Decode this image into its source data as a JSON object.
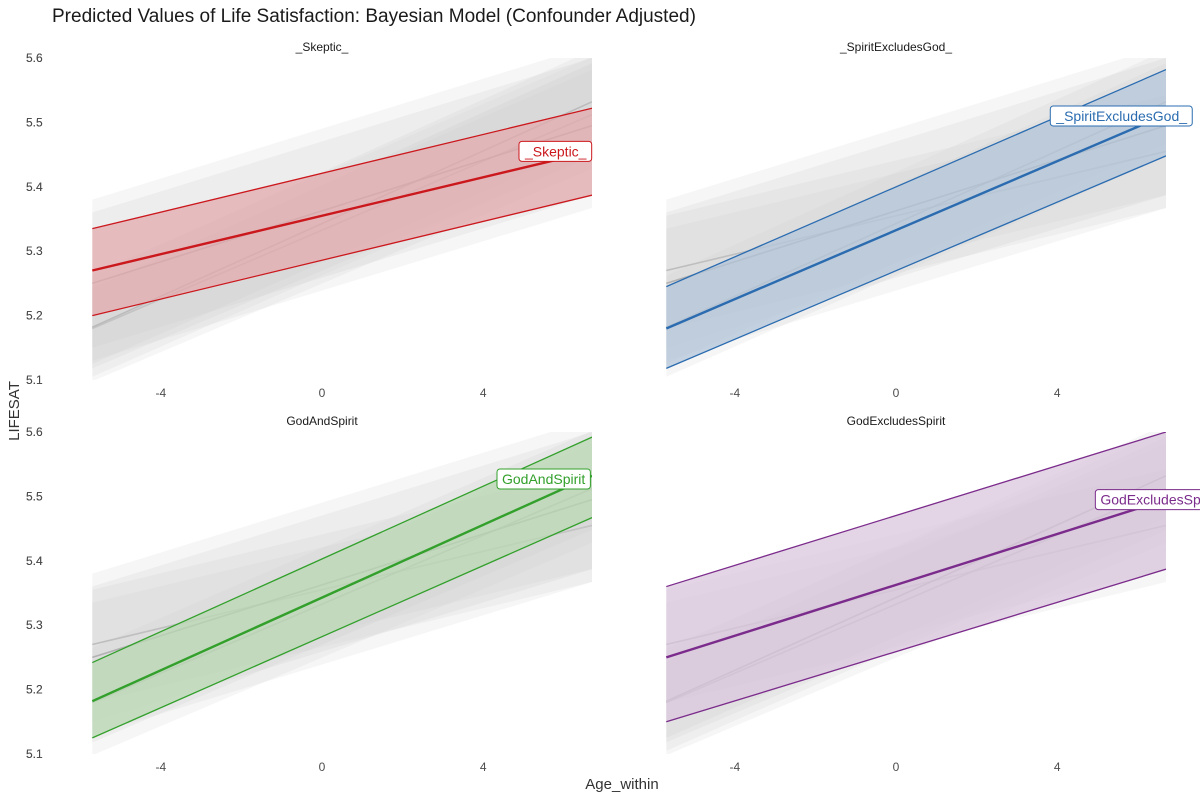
{
  "title": "Predicted Values of Life Satisfaction: Bayesian Model (Confounder Adjusted)",
  "xlabel": "Age_within",
  "ylabel": "LIFESAT",
  "chart_data": {
    "type": "line",
    "title": "Predicted Values of Life Satisfaction: Bayesian Model (Confounder Adjusted)",
    "xlabel": "Age_within",
    "ylabel": "LIFESAT",
    "xlim": [
      -6.7,
      6.7
    ],
    "ylim": [
      5.1,
      5.6
    ],
    "x_ticks": [
      -4,
      0,
      4
    ],
    "y_ticks": [
      5.1,
      5.2,
      5.3,
      5.4,
      5.5,
      5.6
    ],
    "x_tick_labels": [
      "-4",
      "0",
      "4"
    ],
    "y_tick_labels": [
      "5.1",
      "5.2",
      "5.3",
      "5.4",
      "5.5",
      "5.6"
    ],
    "background_color": "#cccccc",
    "panels": [
      {
        "name": "_Skeptic_",
        "strip": "_Skeptic_",
        "label": "_Skeptic_",
        "color": "#cb181d",
        "fill": "#e3a9ae",
        "x": [
          -5.7,
          6.7
        ],
        "mean": [
          5.27,
          5.455
        ],
        "lower": [
          5.2,
          5.387
        ],
        "upper": [
          5.335,
          5.522
        ],
        "label_at": [
          5.8,
          5.455
        ]
      },
      {
        "name": "_SpiritExcludesGod_",
        "strip": "_SpiritExcludesGod_",
        "label": "_SpiritExcludesGod_",
        "color": "#2b6cb0",
        "fill": "#b4c6da",
        "x": [
          -5.7,
          6.7
        ],
        "mean": [
          5.18,
          5.512
        ],
        "lower": [
          5.118,
          5.448
        ],
        "upper": [
          5.245,
          5.582
        ],
        "label_at": [
          5.6,
          5.51
        ]
      },
      {
        "name": "GodAndSpirit",
        "strip": "GodAndSpirit",
        "label": "GodAndSpirit",
        "color": "#33a02c",
        "fill": "#b9d8b4",
        "x": [
          -5.7,
          6.7
        ],
        "mean": [
          5.182,
          5.532
        ],
        "lower": [
          5.125,
          5.467
        ],
        "upper": [
          5.242,
          5.592
        ],
        "label_at": [
          5.5,
          5.527
        ]
      },
      {
        "name": "GodExcludesSpirit",
        "strip": "GodExcludesSpirit",
        "label": "GodExcludesSpirit",
        "color": "#7b2b8b",
        "fill": "#d9c5dd",
        "x": [
          -5.7,
          6.7
        ],
        "mean": [
          5.25,
          5.495
        ],
        "lower": [
          5.15,
          5.387
        ],
        "upper": [
          5.36,
          5.6
        ],
        "label_at": [
          6.5,
          5.495
        ]
      }
    ]
  }
}
